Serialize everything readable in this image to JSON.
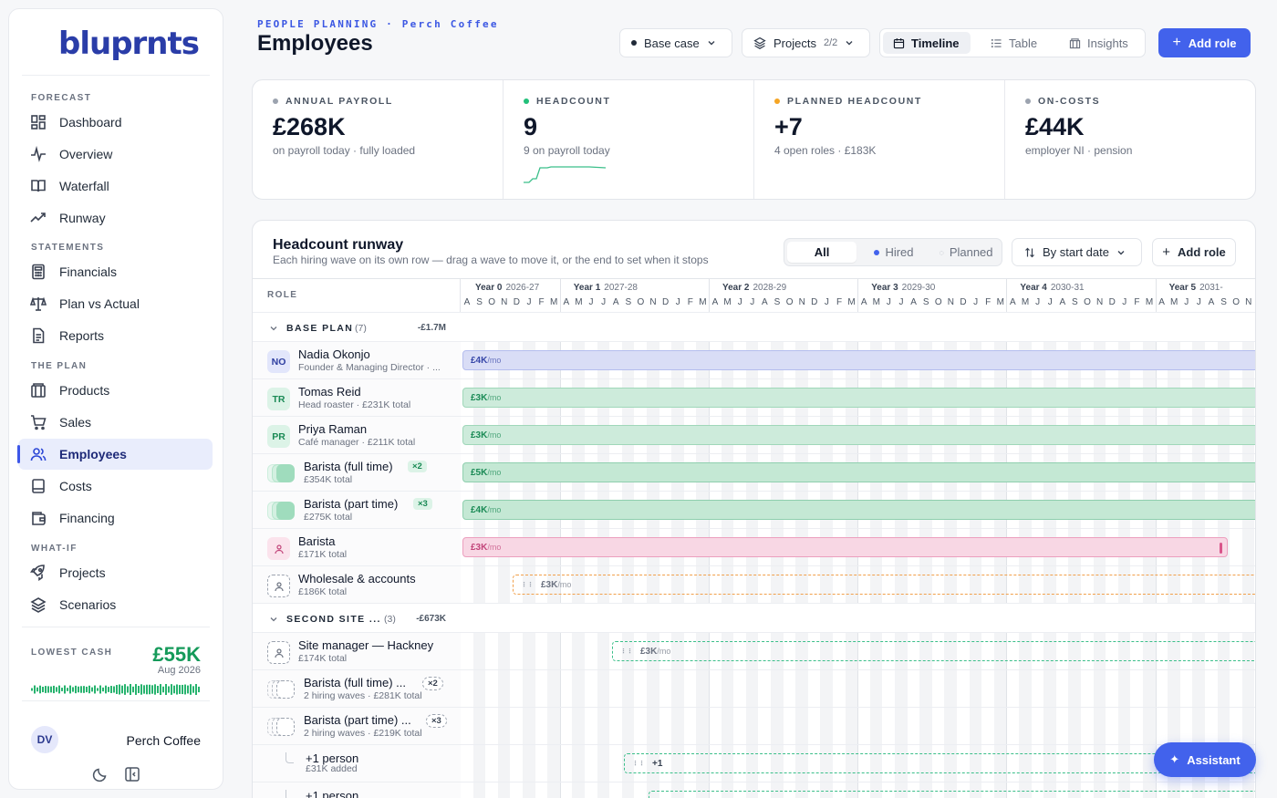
{
  "brand": "bluprnts",
  "sidebar": {
    "sections": [
      {
        "label": "FORECAST",
        "items": [
          {
            "label": "Dashboard",
            "icon": "dashboard-icon"
          },
          {
            "label": "Overview",
            "icon": "pulse-icon"
          },
          {
            "label": "Waterfall",
            "icon": "book-icon"
          },
          {
            "label": "Runway",
            "icon": "trend-icon"
          }
        ]
      },
      {
        "label": "STATEMENTS",
        "items": [
          {
            "label": "Financials",
            "icon": "calculator-icon"
          },
          {
            "label": "Plan vs Actual",
            "icon": "scale-icon"
          },
          {
            "label": "Reports",
            "icon": "document-icon"
          }
        ]
      },
      {
        "label": "THE PLAN",
        "items": [
          {
            "label": "Products",
            "icon": "box-icon"
          },
          {
            "label": "Sales",
            "icon": "cart-icon"
          },
          {
            "label": "Employees",
            "icon": "users-icon",
            "active": true
          },
          {
            "label": "Costs",
            "icon": "receipt-icon"
          },
          {
            "label": "Financing",
            "icon": "wallet-icon"
          }
        ]
      },
      {
        "label": "WHAT-IF",
        "items": [
          {
            "label": "Projects",
            "icon": "rocket-icon"
          },
          {
            "label": "Scenarios",
            "icon": "layers-icon"
          }
        ]
      }
    ],
    "lowest_cash": {
      "label": "LOWEST CASH",
      "value": "£55K",
      "date": "Aug 2026"
    },
    "user": {
      "initials": "DV",
      "company": "Perch Coffee"
    }
  },
  "header": {
    "kicker": "PEOPLE PLANNING · Perch Coffee",
    "title": "Employees",
    "scenario": "Base case",
    "projects_label": "Projects",
    "projects_count": "2/2",
    "views": [
      "Timeline",
      "Table",
      "Insights"
    ],
    "active_view": "Timeline",
    "add_role": "Add role"
  },
  "kpis": [
    {
      "label": "ANNUAL PAYROLL",
      "value": "£268K",
      "sub": "on payroll today · fully loaded",
      "color": "#9ca3af"
    },
    {
      "label": "HEADCOUNT",
      "value": "9",
      "sub": "9 on payroll today",
      "color": "#22c07a"
    },
    {
      "label": "PLANNED HEADCOUNT",
      "value": "+7",
      "sub": "4 open roles · £183K",
      "color": "#f5a524"
    },
    {
      "label": "ON-COSTS",
      "value": "£44K",
      "sub": "employer NI · pension",
      "color": "#9ca3af"
    }
  ],
  "runway": {
    "title": "Headcount runway",
    "subtitle": "Each hiring wave on its own row — drag a wave to move it, or the end to set when it stops",
    "filters": [
      "All",
      "Hired",
      "Planned"
    ],
    "active_filter": "All",
    "sort": "By start date",
    "add_role": "Add role",
    "role_header": "ROLE",
    "years": [
      {
        "label": "Year 0",
        "range": "2026-27"
      },
      {
        "label": "Year 1",
        "range": "2027-28"
      },
      {
        "label": "Year 2",
        "range": "2028-29"
      },
      {
        "label": "Year 3",
        "range": "2029-30"
      },
      {
        "label": "Year 4",
        "range": "2030-31"
      },
      {
        "label": "Year 5",
        "range": "2031-"
      }
    ],
    "months": [
      "A",
      "S",
      "O",
      "N",
      "D",
      "J",
      "F",
      "M",
      "A",
      "M",
      "J",
      "J",
      "A",
      "S",
      "O",
      "N",
      "D",
      "J",
      "F",
      "M",
      "A",
      "M",
      "J",
      "J",
      "A",
      "S",
      "O",
      "N",
      "D",
      "J",
      "F",
      "M",
      "A",
      "M",
      "J",
      "J",
      "A",
      "S",
      "O",
      "N",
      "D",
      "J",
      "F",
      "M",
      "A",
      "M",
      "J",
      "J",
      "A",
      "S",
      "O",
      "N",
      "D",
      "J",
      "F",
      "M",
      "A",
      "M",
      "J",
      "J",
      "A",
      "S",
      "O",
      "N"
    ],
    "groups": [
      {
        "title": "BASE PLAN",
        "count": "(7)",
        "total": "-£1.7M"
      },
      {
        "title": "SECOND SITE ...",
        "count": "(3)",
        "total": "-£673K"
      }
    ],
    "roles": [
      {
        "initials": "NO",
        "name": "Nadia Okonjo",
        "sub": "Founder & Managing Director · ...",
        "bar": "£4K",
        "unit": "/mo"
      },
      {
        "initials": "TR",
        "name": "Tomas Reid",
        "sub": "Head roaster · £231K total",
        "bar": "£3K",
        "unit": "/mo"
      },
      {
        "initials": "PR",
        "name": "Priya Raman",
        "sub": "Café manager · £211K total",
        "bar": "£3K",
        "unit": "/mo"
      },
      {
        "name": "Barista (full time)",
        "mult": "×2",
        "sub": "£354K total",
        "bar": "£5K",
        "unit": "/mo"
      },
      {
        "name": "Barista (part time)",
        "mult": "×3",
        "sub": "£275K total",
        "bar": "£4K",
        "unit": "/mo"
      },
      {
        "name": "Barista",
        "sub": "£171K total",
        "bar": "£3K",
        "unit": "/mo"
      },
      {
        "name": "Wholesale & accounts",
        "sub": "£186K total",
        "bar": "£3K",
        "unit": "/mo"
      },
      {
        "name": "Site manager — Hackney",
        "sub": "£174K total",
        "bar": "£3K",
        "unit": "/mo"
      },
      {
        "name": "Barista (full time) ...",
        "mult": "×2",
        "sub": "2 hiring waves · £281K total"
      },
      {
        "name": "Barista (part time) ...",
        "mult": "×3",
        "sub": "2 hiring waves · £219K total"
      },
      {
        "name": "+1 person",
        "sub": "£31K added",
        "bar": "+1"
      },
      {
        "name": "+1 person",
        "sub": ""
      }
    ]
  },
  "assistant": "Assistant"
}
